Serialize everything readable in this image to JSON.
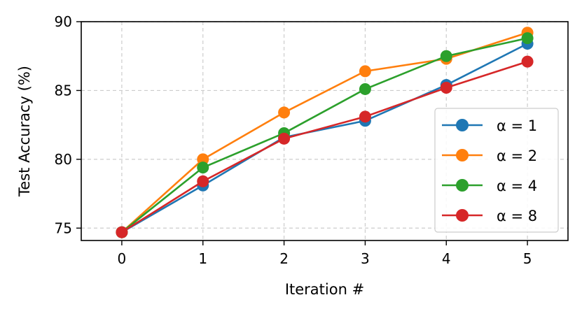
{
  "chart_data": {
    "type": "line",
    "xlabel": "Iteration #",
    "ylabel": "Test Accuracy (%)",
    "x": [
      0,
      1,
      2,
      3,
      4,
      5
    ],
    "xlim": [
      -0.5,
      5.5
    ],
    "ylim": [
      74.1,
      90
    ],
    "xticks": [
      "0",
      "1",
      "2",
      "3",
      "4",
      "5"
    ],
    "yticks": [
      "75",
      "80",
      "85",
      "90"
    ],
    "grid": true,
    "legend_position": "lower-right",
    "series": [
      {
        "name": "α = 1",
        "color": "#1f77b4",
        "values": [
          74.7,
          78.1,
          81.6,
          82.8,
          85.4,
          88.4
        ]
      },
      {
        "name": "α = 2",
        "color": "#ff7f0e",
        "values": [
          74.7,
          80.0,
          83.4,
          86.4,
          87.3,
          89.2
        ]
      },
      {
        "name": "α = 4",
        "color": "#2ca02c",
        "values": [
          74.7,
          79.4,
          81.9,
          85.1,
          87.5,
          88.8
        ]
      },
      {
        "name": "α = 8",
        "color": "#d62728",
        "values": [
          74.7,
          78.4,
          81.5,
          83.1,
          85.2,
          87.1
        ]
      }
    ]
  }
}
